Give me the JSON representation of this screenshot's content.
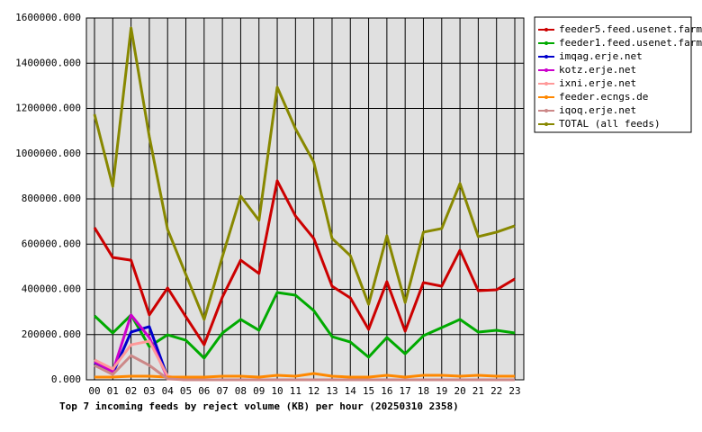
{
  "chart_data": {
    "type": "line",
    "title": "Top 7 incoming feeds by reject volume (KB) per hour (20250310 2358)",
    "categories": [
      "00",
      "01",
      "02",
      "03",
      "04",
      "05",
      "06",
      "07",
      "08",
      "09",
      "10",
      "11",
      "12",
      "13",
      "14",
      "15",
      "16",
      "17",
      "18",
      "19",
      "20",
      "21",
      "22",
      "23"
    ],
    "series": [
      {
        "name": "feeder5.feed.usenet.farm",
        "color": "#cc0000",
        "values": [
          673000,
          541000,
          529000,
          287000,
          406000,
          279000,
          155000,
          366000,
          529000,
          470000,
          880000,
          724000,
          625000,
          414000,
          362000,
          223000,
          434000,
          215000,
          430000,
          414000,
          573000,
          394000,
          398000,
          446000
        ]
      },
      {
        "name": "feeder1.feed.usenet.farm",
        "color": "#00aa00",
        "values": [
          283000,
          207000,
          287000,
          147000,
          199000,
          175000,
          96000,
          207000,
          267000,
          219000,
          386000,
          374000,
          306000,
          191000,
          167000,
          100000,
          187000,
          115000,
          195000,
          231000,
          267000,
          211000,
          219000,
          207000
        ]
      },
      {
        "name": "imqag.erje.net",
        "color": "#0000cc",
        "values": [
          76000,
          28000,
          211000,
          235000,
          12000,
          0,
          0,
          0,
          0,
          0,
          0,
          0,
          0,
          0,
          0,
          0,
          0,
          0,
          0,
          0,
          0,
          0,
          0,
          0
        ]
      },
      {
        "name": "kotz.erje.net",
        "color": "#cc00cc",
        "values": [
          80000,
          36000,
          287000,
          187000,
          8000,
          0,
          0,
          0,
          0,
          0,
          0,
          0,
          0,
          0,
          0,
          0,
          0,
          0,
          0,
          0,
          0,
          0,
          0,
          0
        ]
      },
      {
        "name": "ixni.erje.net",
        "color": "#ff9999",
        "values": [
          88000,
          48000,
          155000,
          171000,
          16000,
          0,
          0,
          0,
          0,
          0,
          0,
          0,
          0,
          0,
          0,
          0,
          0,
          0,
          0,
          0,
          0,
          0,
          0,
          0
        ]
      },
      {
        "name": "feeder.ecngs.de",
        "color": "#ff8800",
        "values": [
          12000,
          12000,
          16000,
          16000,
          12000,
          12000,
          12000,
          16000,
          16000,
          12000,
          20000,
          16000,
          28000,
          16000,
          12000,
          12000,
          20000,
          12000,
          20000,
          20000,
          16000,
          20000,
          16000,
          16000
        ]
      },
      {
        "name": "iqoq.erje.net",
        "color": "#cc8888",
        "values": [
          64000,
          24000,
          107000,
          64000,
          4000,
          0,
          0,
          0,
          0,
          0,
          0,
          0,
          0,
          0,
          0,
          0,
          0,
          0,
          0,
          0,
          0,
          0,
          0,
          0
        ]
      },
      {
        "name": "TOTAL (all feeds)",
        "color": "#888800",
        "values": [
          1174000,
          855000,
          1556000,
          1075000,
          665000,
          466000,
          267000,
          545000,
          812000,
          705000,
          1294000,
          1110000,
          963000,
          625000,
          549000,
          334000,
          637000,
          342000,
          653000,
          669000,
          868000,
          633000,
          653000,
          681000
        ]
      }
    ],
    "ylim": [
      0,
      1600000
    ],
    "yticks": [
      {
        "value": 0,
        "label": "0.000"
      },
      {
        "value": 200000,
        "label": "200000.000"
      },
      {
        "value": 400000,
        "label": "400000.000"
      },
      {
        "value": 600000,
        "label": "600000.000"
      },
      {
        "value": 800000,
        "label": "800000.000"
      },
      {
        "value": 1000000,
        "label": "1000000.000"
      },
      {
        "value": 1200000,
        "label": "1200000.000"
      },
      {
        "value": 1400000,
        "label": "1400000.000"
      },
      {
        "value": 1600000,
        "label": "1600000.000"
      }
    ],
    "grid": true,
    "legend": "right"
  }
}
